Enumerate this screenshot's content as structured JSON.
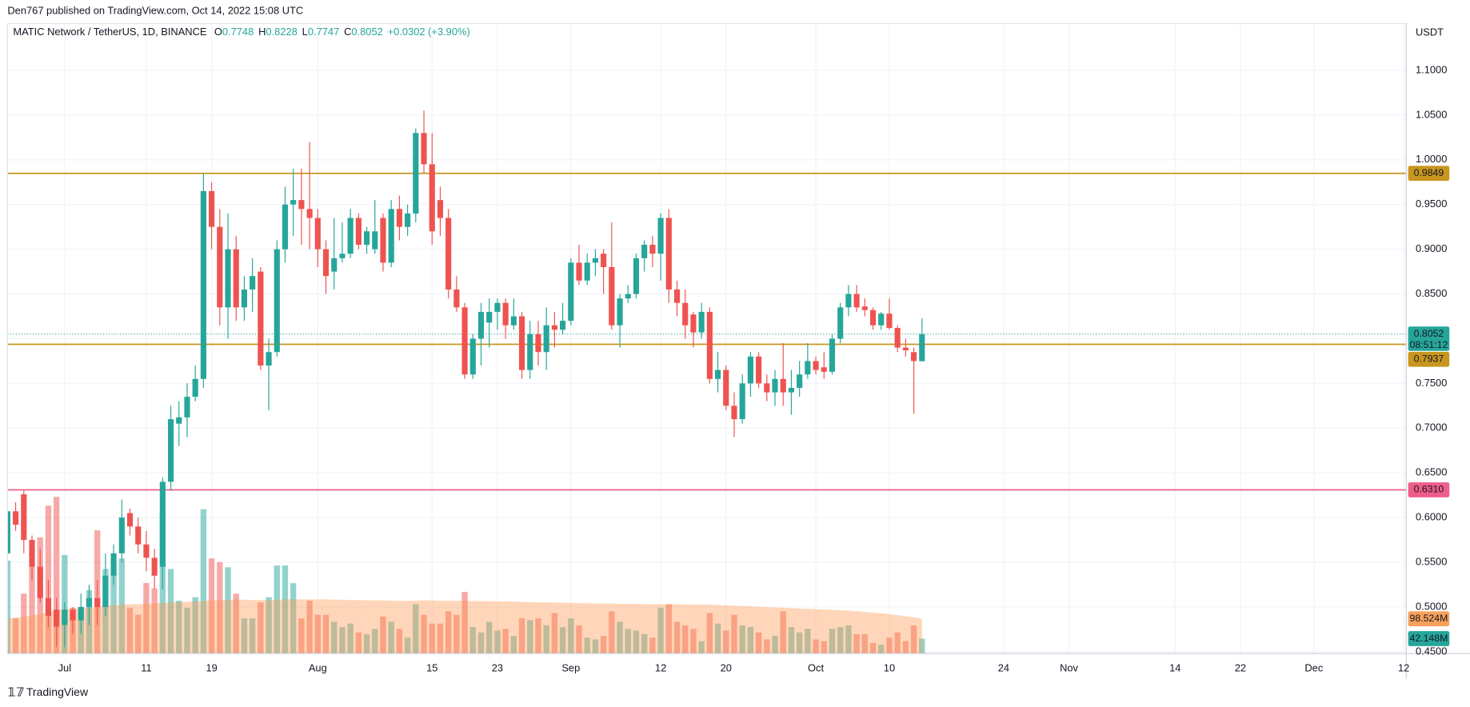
{
  "header": {
    "published": "Den767 published on TradingView.com, Oct 14, 2022 15:08 UTC",
    "brand": "TradingView"
  },
  "chart_data": {
    "type": "candlestick",
    "symbol": "MATIC Network / TetherUS, 1D, BINANCE",
    "ohlc_keys": [
      "O",
      "H",
      "L",
      "C"
    ],
    "change": "+0.0302 (+3.90%)",
    "countdown": "08:51:12",
    "axis_unit": "USDT",
    "up_color": "#26a69a",
    "down_color": "#ef5350",
    "grid": true,
    "ylim": [
      0.448,
      1.1524
    ],
    "yticks": [
      {
        "value": 0.45,
        "label": "0.4500"
      },
      {
        "value": 0.5,
        "label": "0.5000"
      },
      {
        "value": 0.55,
        "label": "0.5500"
      },
      {
        "value": 0.6,
        "label": "0.6000"
      },
      {
        "value": 0.65,
        "label": "0.6500"
      },
      {
        "value": 0.7,
        "label": "0.7000"
      },
      {
        "value": 0.75,
        "label": "0.7500"
      },
      {
        "value": 0.8,
        "label": "0.8000"
      },
      {
        "value": 0.85,
        "label": "0.8500"
      },
      {
        "value": 0.9,
        "label": "0.9000"
      },
      {
        "value": 0.95,
        "label": "0.9500"
      },
      {
        "value": 1.0,
        "label": "1.0000"
      },
      {
        "value": 1.05,
        "label": "1.0500"
      },
      {
        "value": 1.1,
        "label": "1.1000"
      }
    ],
    "xlim": [
      "2022-06-24",
      "2022-12-13"
    ],
    "xticks": [
      {
        "value": "2022-07-01",
        "label": "Jul"
      },
      {
        "value": "2022-07-11",
        "label": "11"
      },
      {
        "value": "2022-07-19",
        "label": "19"
      },
      {
        "value": "2022-08-01",
        "label": "Aug"
      },
      {
        "value": "2022-08-15",
        "label": "15"
      },
      {
        "value": "2022-08-23",
        "label": "23"
      },
      {
        "value": "2022-09-01",
        "label": "Sep"
      },
      {
        "value": "2022-09-12",
        "label": "12"
      },
      {
        "value": "2022-09-20",
        "label": "20"
      },
      {
        "value": "2022-10-01",
        "label": "Oct"
      },
      {
        "value": "2022-10-10",
        "label": "10"
      },
      {
        "value": "2022-10-24",
        "label": "24"
      },
      {
        "value": "2022-11-01",
        "label": "Nov"
      },
      {
        "value": "2022-11-14",
        "label": "14"
      },
      {
        "value": "2022-11-22",
        "label": "22"
      },
      {
        "value": "2022-12-01",
        "label": "Dec"
      },
      {
        "value": "2022-12-12",
        "label": "12"
      }
    ],
    "hlines": [
      {
        "value": 0.9849,
        "color": "#c8961e",
        "label_color": "#131722"
      },
      {
        "value": 0.7937,
        "color": "#c8961e",
        "label_color": "#131722"
      },
      {
        "value": 0.631,
        "label": "0.6310",
        "color": "#ef5d8a",
        "label_color": "#ffffff"
      }
    ],
    "volume_ylim": [
      0,
      1790
    ],
    "volume_up_color": "rgba(38,166,154,0.5)",
    "volume_down_color": "rgba(239,83,80,0.5)",
    "volume_ma_color": "#ff9850",
    "volume_ma_tag_color": "#f7a25c",
    "volume_ma_last_label": "98.524M",
    "volume_last_label": "42.148M",
    "candles": {
      "x": [
        "2022-06-24",
        "2022-06-25",
        "2022-06-26",
        "2022-06-27",
        "2022-06-28",
        "2022-06-29",
        "2022-06-30",
        "2022-07-01",
        "2022-07-02",
        "2022-07-03",
        "2022-07-04",
        "2022-07-05",
        "2022-07-06",
        "2022-07-07",
        "2022-07-08",
        "2022-07-09",
        "2022-07-10",
        "2022-07-11",
        "2022-07-12",
        "2022-07-13",
        "2022-07-14",
        "2022-07-15",
        "2022-07-16",
        "2022-07-17",
        "2022-07-18",
        "2022-07-19",
        "2022-07-20",
        "2022-07-21",
        "2022-07-22",
        "2022-07-23",
        "2022-07-24",
        "2022-07-25",
        "2022-07-26",
        "2022-07-27",
        "2022-07-28",
        "2022-07-29",
        "2022-07-30",
        "2022-07-31",
        "2022-08-01",
        "2022-08-02",
        "2022-08-03",
        "2022-08-04",
        "2022-08-05",
        "2022-08-06",
        "2022-08-07",
        "2022-08-08",
        "2022-08-09",
        "2022-08-10",
        "2022-08-11",
        "2022-08-12",
        "2022-08-13",
        "2022-08-14",
        "2022-08-15",
        "2022-08-16",
        "2022-08-17",
        "2022-08-18",
        "2022-08-19",
        "2022-08-20",
        "2022-08-21",
        "2022-08-22",
        "2022-08-23",
        "2022-08-24",
        "2022-08-25",
        "2022-08-26",
        "2022-08-27",
        "2022-08-28",
        "2022-08-29",
        "2022-08-30",
        "2022-08-31",
        "2022-09-01",
        "2022-09-02",
        "2022-09-03",
        "2022-09-04",
        "2022-09-05",
        "2022-09-06",
        "2022-09-07",
        "2022-09-08",
        "2022-09-09",
        "2022-09-10",
        "2022-09-11",
        "2022-09-12",
        "2022-09-13",
        "2022-09-14",
        "2022-09-15",
        "2022-09-16",
        "2022-09-17",
        "2022-09-18",
        "2022-09-19",
        "2022-09-20",
        "2022-09-21",
        "2022-09-22",
        "2022-09-23",
        "2022-09-24",
        "2022-09-25",
        "2022-09-26",
        "2022-09-27",
        "2022-09-28",
        "2022-09-29",
        "2022-09-30",
        "2022-10-01",
        "2022-10-02",
        "2022-10-03",
        "2022-10-04",
        "2022-10-05",
        "2022-10-06",
        "2022-10-07",
        "2022-10-08",
        "2022-10-09",
        "2022-10-10",
        "2022-10-11",
        "2022-10-12",
        "2022-10-13",
        "2022-10-14"
      ],
      "open": [
        0.56,
        0.607,
        0.626,
        0.575,
        0.545,
        0.51,
        0.497,
        0.48,
        0.497,
        0.485,
        0.5,
        0.51,
        0.5,
        0.535,
        0.56,
        0.605,
        0.59,
        0.57,
        0.555,
        0.545,
        0.64,
        0.705,
        0.712,
        0.735,
        0.755,
        0.965,
        0.925,
        0.835,
        0.9,
        0.835,
        0.855,
        0.875,
        0.77,
        0.785,
        0.9,
        0.95,
        0.955,
        0.945,
        0.935,
        0.9,
        0.875,
        0.89,
        0.895,
        0.935,
        0.905,
        0.9,
        0.935,
        0.885,
        0.945,
        0.925,
        0.94,
        1.03,
        0.995,
        0.955,
        0.935,
        0.855,
        0.835,
        0.76,
        0.8,
        0.818,
        0.83,
        0.84,
        0.815,
        0.825,
        0.765,
        0.805,
        0.785,
        0.815,
        0.81,
        0.82,
        0.885,
        0.865,
        0.885,
        0.895,
        0.88,
        0.815,
        0.845,
        0.85,
        0.89,
        0.905,
        0.895,
        0.935,
        0.855,
        0.84,
        0.827,
        0.807,
        0.83,
        0.755,
        0.765,
        0.725,
        0.71,
        0.75,
        0.78,
        0.75,
        0.74,
        0.755,
        0.74,
        0.745,
        0.76,
        0.775,
        0.768,
        0.763,
        0.8,
        0.835,
        0.85,
        0.836,
        0.832,
        0.815,
        0.828,
        0.812,
        0.79,
        0.785,
        0.7748
      ],
      "high": [
        0.612,
        0.617,
        0.63,
        0.58,
        0.565,
        0.53,
        0.51,
        0.505,
        0.5,
        0.515,
        0.525,
        0.53,
        0.56,
        0.57,
        0.62,
        0.61,
        0.6,
        0.585,
        0.565,
        0.645,
        0.725,
        0.73,
        0.75,
        0.77,
        0.985,
        0.975,
        0.945,
        0.94,
        0.915,
        0.87,
        0.89,
        0.88,
        0.8,
        0.91,
        0.97,
        0.99,
        0.99,
        1.02,
        0.945,
        0.91,
        0.935,
        0.93,
        0.945,
        0.94,
        0.925,
        0.955,
        0.94,
        0.955,
        0.96,
        0.95,
        1.035,
        1.055,
        1.03,
        0.97,
        0.945,
        0.87,
        0.84,
        0.805,
        0.84,
        0.845,
        0.845,
        0.845,
        0.845,
        0.83,
        0.82,
        0.82,
        0.835,
        0.83,
        0.84,
        0.89,
        0.905,
        0.895,
        0.9,
        0.9,
        0.93,
        0.85,
        0.86,
        0.895,
        0.91,
        0.915,
        0.94,
        0.945,
        0.865,
        0.855,
        0.83,
        0.84,
        0.835,
        0.785,
        0.77,
        0.74,
        0.76,
        0.785,
        0.785,
        0.76,
        0.765,
        0.795,
        0.765,
        0.775,
        0.795,
        0.78,
        0.785,
        0.805,
        0.84,
        0.86,
        0.86,
        0.845,
        0.835,
        0.83,
        0.845,
        0.815,
        0.8,
        0.79,
        0.8228
      ],
      "low": [
        0.555,
        0.585,
        0.56,
        0.53,
        0.505,
        0.477,
        0.455,
        0.455,
        0.47,
        0.47,
        0.48,
        0.48,
        0.49,
        0.525,
        0.55,
        0.58,
        0.56,
        0.54,
        0.52,
        0.52,
        0.63,
        0.68,
        0.69,
        0.73,
        0.745,
        0.9,
        0.815,
        0.8,
        0.82,
        0.82,
        0.83,
        0.765,
        0.72,
        0.78,
        0.885,
        0.915,
        0.905,
        0.9,
        0.88,
        0.85,
        0.855,
        0.885,
        0.89,
        0.9,
        0.895,
        0.895,
        0.875,
        0.88,
        0.91,
        0.915,
        0.93,
        0.985,
        0.905,
        0.915,
        0.845,
        0.83,
        0.755,
        0.755,
        0.77,
        0.79,
        0.81,
        0.8,
        0.81,
        0.755,
        0.755,
        0.77,
        0.765,
        0.79,
        0.805,
        0.815,
        0.86,
        0.86,
        0.87,
        0.85,
        0.81,
        0.79,
        0.84,
        0.845,
        0.875,
        0.88,
        0.865,
        0.84,
        0.825,
        0.8,
        0.79,
        0.8,
        0.75,
        0.74,
        0.72,
        0.69,
        0.705,
        0.735,
        0.745,
        0.73,
        0.725,
        0.725,
        0.715,
        0.735,
        0.755,
        0.76,
        0.755,
        0.76,
        0.795,
        0.825,
        0.83,
        0.825,
        0.81,
        0.81,
        0.81,
        0.785,
        0.78,
        0.716,
        0.7747
      ],
      "close": [
        0.607,
        0.592,
        0.575,
        0.545,
        0.51,
        0.49,
        0.478,
        0.497,
        0.485,
        0.5,
        0.51,
        0.5,
        0.535,
        0.56,
        0.6,
        0.59,
        0.57,
        0.555,
        0.535,
        0.64,
        0.71,
        0.712,
        0.735,
        0.755,
        0.965,
        0.925,
        0.835,
        0.9,
        0.835,
        0.855,
        0.87,
        0.77,
        0.785,
        0.9,
        0.95,
        0.955,
        0.945,
        0.935,
        0.9,
        0.87,
        0.89,
        0.895,
        0.935,
        0.905,
        0.92,
        0.92,
        0.885,
        0.945,
        0.925,
        0.94,
        1.03,
        0.995,
        0.92,
        0.935,
        0.855,
        0.835,
        0.76,
        0.8,
        0.83,
        0.83,
        0.84,
        0.815,
        0.825,
        0.765,
        0.805,
        0.785,
        0.815,
        0.81,
        0.82,
        0.885,
        0.865,
        0.885,
        0.89,
        0.88,
        0.815,
        0.845,
        0.85,
        0.89,
        0.905,
        0.895,
        0.935,
        0.855,
        0.84,
        0.815,
        0.807,
        0.83,
        0.755,
        0.765,
        0.725,
        0.71,
        0.75,
        0.78,
        0.75,
        0.74,
        0.755,
        0.74,
        0.745,
        0.76,
        0.775,
        0.765,
        0.763,
        0.8,
        0.835,
        0.85,
        0.835,
        0.832,
        0.815,
        0.828,
        0.812,
        0.79,
        0.787,
        0.775,
        0.8052
      ],
      "volume": [
        264,
        100,
        170,
        250,
        330,
        420,
        445,
        280,
        130,
        110,
        180,
        350,
        240,
        230,
        270,
        130,
        110,
        200,
        185,
        400,
        240,
        150,
        130,
        160,
        410,
        270,
        260,
        245,
        170,
        100,
        100,
        145,
        160,
        250,
        250,
        200,
        100,
        150,
        110,
        110,
        90,
        75,
        85,
        60,
        55,
        70,
        105,
        90,
        70,
        45,
        140,
        110,
        85,
        85,
        120,
        110,
        175,
        75,
        60,
        90,
        65,
        70,
        50,
        100,
        95,
        100,
        80,
        115,
        75,
        100,
        80,
        45,
        40,
        50,
        120,
        90,
        70,
        65,
        55,
        45,
        130,
        140,
        90,
        80,
        70,
        35,
        115,
        85,
        65,
        110,
        80,
        75,
        60,
        40,
        50,
        120,
        75,
        60,
        70,
        40,
        35,
        70,
        75,
        80,
        55,
        55,
        30,
        25,
        45,
        60,
        35,
        80,
        42.148
      ],
      "volume_ma": [
        100,
        102,
        104,
        108,
        112,
        118,
        124,
        126,
        127,
        128,
        130,
        133,
        135,
        137,
        139,
        140,
        140,
        141,
        142,
        144,
        145,
        146,
        147,
        148,
        150,
        151,
        152,
        153,
        153,
        153,
        152,
        152,
        152,
        153,
        154,
        154,
        154,
        154,
        154,
        154,
        153,
        153,
        152,
        152,
        151,
        151,
        151,
        150,
        150,
        150,
        150,
        151,
        151,
        150,
        150,
        150,
        150,
        149,
        149,
        149,
        148,
        148,
        147,
        147,
        146,
        145,
        145,
        145,
        144,
        144,
        143,
        143,
        142,
        142,
        142,
        141,
        141,
        141,
        140,
        140,
        140,
        140,
        140,
        139,
        139,
        139,
        139,
        138,
        137,
        136,
        135,
        134,
        133,
        132,
        131,
        130,
        129,
        128,
        127,
        126,
        125,
        124,
        123,
        122,
        120,
        118,
        116,
        114,
        112,
        109,
        106,
        103,
        98.524
      ]
    }
  }
}
